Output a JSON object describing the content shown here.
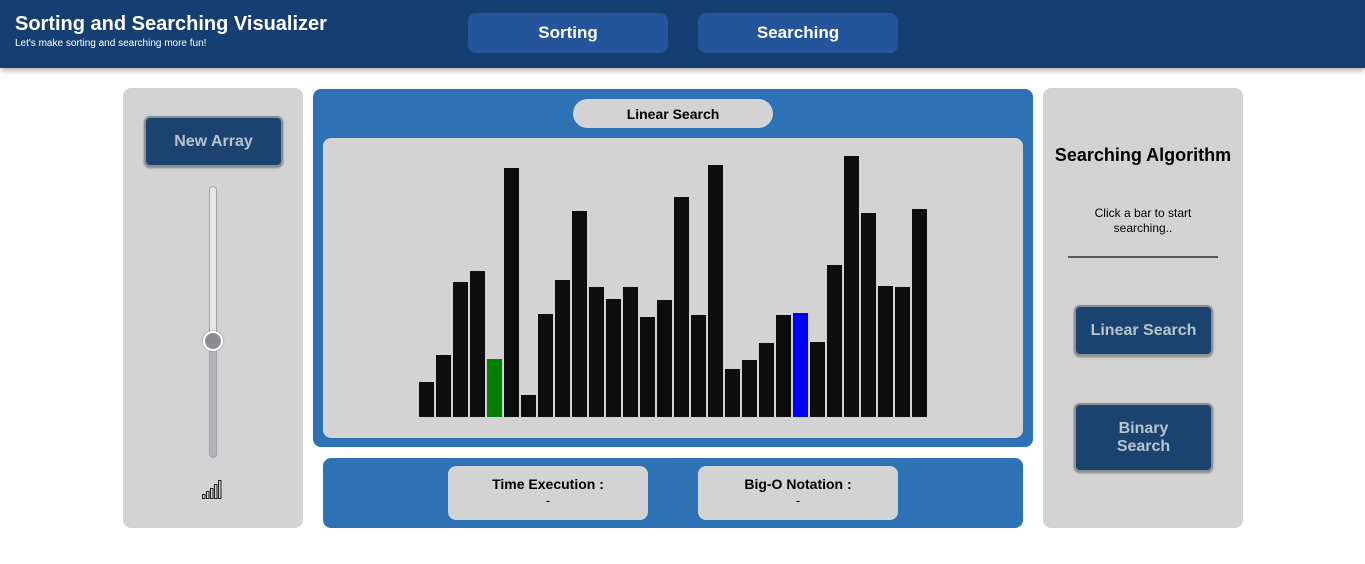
{
  "header": {
    "title": "Sorting and Searching Visualizer",
    "subtitle": "Let's make sorting and searching more fun!",
    "nav": [
      {
        "label": "Sorting"
      },
      {
        "label": "Searching"
      }
    ]
  },
  "left_panel": {
    "new_array_label": "New Array",
    "size_slider_level": 0.43,
    "size_icon": "signal-bars-icon"
  },
  "visualizer": {
    "algorithm_label": "Linear Search",
    "bar_heights": [
      35,
      62,
      135,
      146,
      58,
      249,
      22,
      103,
      137,
      206,
      130,
      118,
      130,
      100,
      117,
      220,
      102,
      252,
      48,
      57,
      74,
      102,
      104,
      75,
      152,
      261,
      204,
      131,
      130,
      208
    ],
    "bar_states": [
      "default",
      "default",
      "default",
      "default",
      "found",
      "default",
      "default",
      "default",
      "default",
      "default",
      "default",
      "default",
      "default",
      "default",
      "default",
      "default",
      "default",
      "default",
      "default",
      "default",
      "default",
      "default",
      "selected",
      "default",
      "default",
      "default",
      "default",
      "default",
      "default",
      "default"
    ],
    "colors": {
      "default": "#0d0d0d",
      "found": "#008000",
      "selected": "#0000ff"
    }
  },
  "stats": {
    "time_label": "Time Execution :",
    "time_value": "-",
    "bigo_label": "Big-O Notation :",
    "bigo_value": "-"
  },
  "right_panel": {
    "title": "Searching Algorithm",
    "hint": "Click a bar to start searching..",
    "buttons": [
      {
        "label": "Linear Search"
      },
      {
        "label": "Binary Search"
      }
    ]
  },
  "colors": {
    "header_bg": "#153f72",
    "nav_button_bg": "#24559a",
    "panel_blue": "#2d72b4",
    "panel_gray": "#d3d3d3",
    "action_button_bg": "#1a446f"
  }
}
